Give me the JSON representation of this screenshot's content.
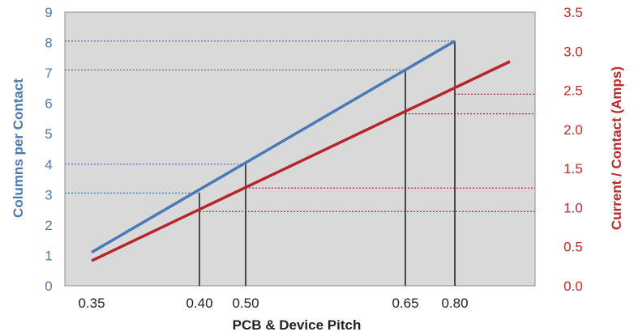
{
  "chart_data": {
    "type": "line",
    "xlabel": "PCB & Device Pitch",
    "ylabel_left": "Columns per Contact",
    "ylabel_right": "Current / Contact (Amps)",
    "x_ticks": [
      "0.35",
      "0.40",
      "0.50",
      "0.65",
      "0.80"
    ],
    "y_left_ticks": [
      "0",
      "1",
      "2",
      "3",
      "4",
      "5",
      "6",
      "7",
      "8",
      "9"
    ],
    "y_right_ticks": [
      "0.0",
      "0.5",
      "1.0",
      "1.5",
      "2.0",
      "2.5",
      "3.0",
      "3.5"
    ],
    "ylim_left": [
      0,
      9
    ],
    "ylim_right": [
      0,
      3.5
    ],
    "grid": false,
    "plot_background": "#d9d9d9",
    "series": [
      {
        "axis": "left",
        "color": "#4a7ab6",
        "points": [
          {
            "x": "0.35",
            "y": 1.1
          },
          {
            "x": "0.80",
            "y": 8.05
          }
        ]
      },
      {
        "axis": "right",
        "color": "#b5272c",
        "points": [
          {
            "x": "0.35",
            "y": 0.32
          },
          {
            "x": "0.80",
            "y": 2.88
          }
        ]
      }
    ],
    "markers": [
      {
        "x": "0.40",
        "left_value": 3.05,
        "right_value": 0.95
      },
      {
        "x": "0.50",
        "left_value": 4.0,
        "right_value": 1.25
      },
      {
        "x": "0.65",
        "left_value": 7.1,
        "right_value": 2.2
      },
      {
        "x": "0.80",
        "left_value": 8.05,
        "right_value": 2.45
      }
    ]
  }
}
